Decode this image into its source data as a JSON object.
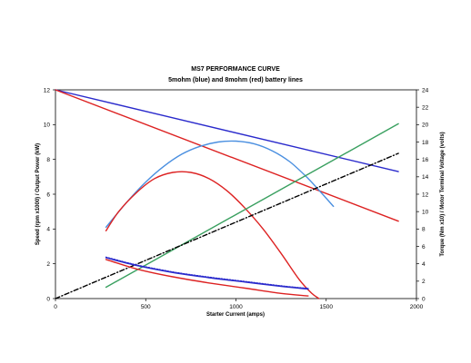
{
  "chart_data": {
    "type": "line",
    "title": "MS7 PERFORMANCE CURVE",
    "subtitle": "5mohm (blue) and 8mohm (red) battery lines",
    "xlabel": "Starter Current (amps)",
    "ylabel": "Speed (rpm x1000) / Output Power (kW)",
    "y2label": "Torque (Nm x10) / Motor Terminal Voltage (volts)",
    "xlim": [
      0,
      2000
    ],
    "ylim": [
      0,
      12
    ],
    "y2lim": [
      0,
      24
    ],
    "xticks": [
      "0",
      "500",
      "1000",
      "1500",
      "2000"
    ],
    "yticks": [
      "0",
      "2",
      "4",
      "6",
      "8",
      "10",
      "12"
    ],
    "y2ticks": [
      "0",
      "2",
      "4",
      "6",
      "8",
      "10",
      "12",
      "14",
      "16",
      "18",
      "20",
      "22",
      "24"
    ],
    "grid": false,
    "colors": {
      "blue": "#2a2acc",
      "lightblue": "#4a8fe0",
      "red": "#dd2222",
      "green": "#3aa060",
      "black": "#000000"
    },
    "series": [
      {
        "axis": "y2",
        "color": "#2a2acc",
        "style": "solid",
        "x": [
          0,
          1900
        ],
        "y": [
          24,
          14.6
        ]
      },
      {
        "axis": "y2",
        "color": "#dd2222",
        "style": "solid",
        "x": [
          0,
          1900
        ],
        "y": [
          24,
          8.9
        ]
      },
      {
        "axis": "y",
        "color": "#4a8fe0",
        "style": "solid",
        "x": [
          280,
          400,
          500,
          600,
          700,
          800,
          900,
          1000,
          1100,
          1200,
          1300,
          1400,
          1480,
          1540
        ],
        "y": [
          4.1,
          5.6,
          6.7,
          7.6,
          8.3,
          8.75,
          9.0,
          9.05,
          8.9,
          8.5,
          7.85,
          6.9,
          6.0,
          5.3
        ]
      },
      {
        "axis": "y",
        "color": "#dd2222",
        "style": "solid",
        "x": [
          280,
          350,
          450,
          550,
          650,
          750,
          850,
          950,
          1050,
          1150,
          1250,
          1350,
          1420,
          1460
        ],
        "y": [
          3.9,
          5.0,
          6.1,
          6.9,
          7.25,
          7.25,
          6.9,
          6.2,
          5.2,
          4.0,
          2.6,
          1.1,
          0.3,
          0
        ]
      },
      {
        "axis": "y",
        "color": "#3aa060",
        "style": "solid",
        "x": [
          280,
          1900
        ],
        "y": [
          0.65,
          10.05
        ]
      },
      {
        "axis": "y",
        "color": "#000000",
        "style": "dashdot",
        "x": [
          0,
          1900
        ],
        "y": [
          0,
          8.35
        ]
      },
      {
        "axis": "y",
        "color": "#2a2acc",
        "style": "solid",
        "x": [
          280,
          450,
          650,
          850,
          1050,
          1250,
          1400
        ],
        "y": [
          2.35,
          1.9,
          1.5,
          1.2,
          0.95,
          0.7,
          0.55
        ]
      },
      {
        "axis": "y",
        "color": "#2a2acc",
        "style": "dotted",
        "x": [
          280,
          450,
          650,
          850,
          1050,
          1250,
          1400
        ],
        "y": [
          2.38,
          1.93,
          1.53,
          1.23,
          0.98,
          0.73,
          0.58
        ]
      },
      {
        "axis": "y",
        "color": "#dd2222",
        "style": "solid",
        "x": [
          280,
          450,
          650,
          850,
          1050,
          1250,
          1400
        ],
        "y": [
          2.25,
          1.7,
          1.25,
          0.9,
          0.6,
          0.3,
          0.15
        ]
      }
    ]
  }
}
